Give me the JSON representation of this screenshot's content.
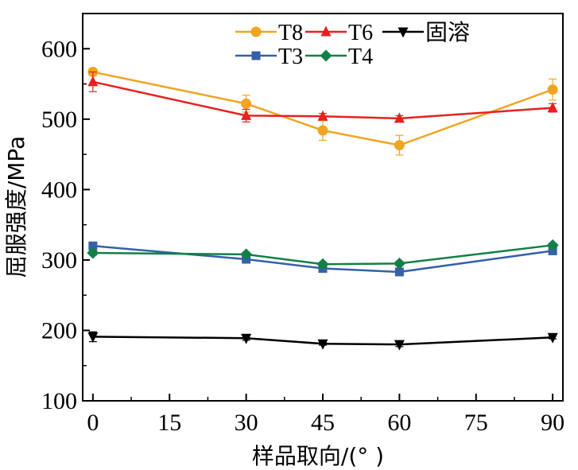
{
  "chart_data": {
    "type": "line",
    "xlabel": "样品取向/(°  )",
    "ylabel": "屈服强度/MPa",
    "xlim": [
      -2,
      92
    ],
    "ylim": [
      100,
      650
    ],
    "x": [
      0,
      30,
      45,
      60,
      90
    ],
    "xticks": [
      0,
      15,
      30,
      45,
      60,
      75,
      90
    ],
    "yticks": [
      100,
      200,
      300,
      400,
      500,
      600
    ],
    "grid": false,
    "legend_position": "top",
    "series": [
      {
        "name": "T8",
        "color": "#f0a522",
        "marker": "circle",
        "values": [
          567,
          522,
          484,
          463,
          542
        ],
        "errors": [
          5,
          12,
          14,
          14,
          15
        ]
      },
      {
        "name": "T6",
        "color": "#e8201e",
        "marker": "triangle-up",
        "values": [
          553,
          505,
          504,
          501,
          516
        ],
        "errors": [
          14,
          9,
          4,
          4,
          6
        ]
      },
      {
        "name": "固溶",
        "color": "#000000",
        "marker": "triangle-down",
        "values": [
          191,
          189,
          181,
          180,
          190
        ],
        "errors": [
          7,
          3,
          2,
          3,
          2
        ]
      },
      {
        "name": "T3",
        "color": "#3560a8",
        "marker": "square",
        "values": [
          320,
          301,
          288,
          283,
          313
        ],
        "errors": [
          3,
          3,
          3,
          3,
          3
        ]
      },
      {
        "name": "T4",
        "color": "#128046",
        "marker": "diamond",
        "values": [
          310,
          308,
          294,
          295,
          321
        ],
        "errors": [
          3,
          3,
          3,
          3,
          3
        ]
      }
    ]
  }
}
